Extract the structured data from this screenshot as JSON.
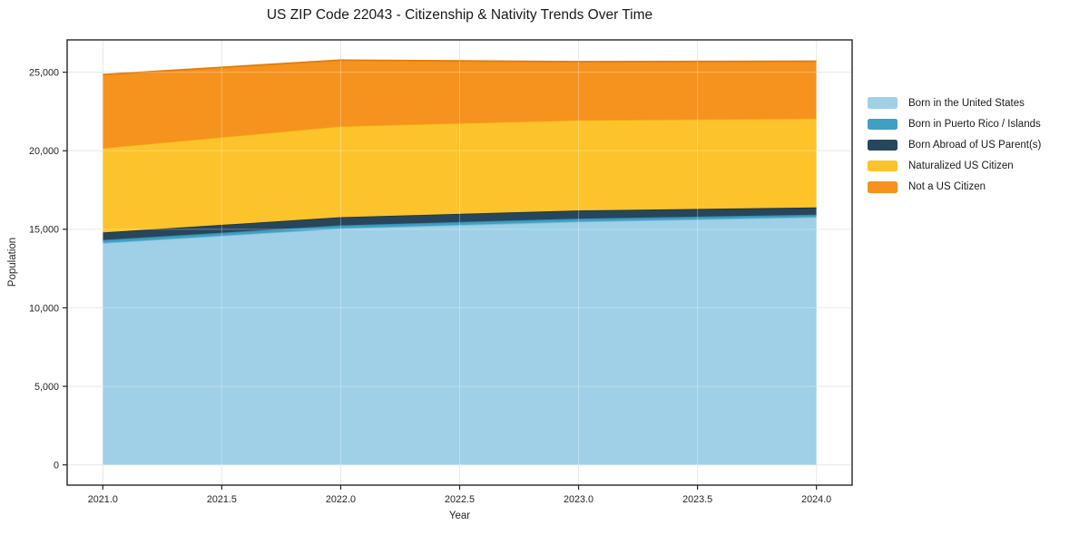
{
  "chart_data": {
    "type": "area",
    "stacked": true,
    "title": "US ZIP Code 22043 - Citizenship & Nativity Trends Over Time",
    "xlabel": "Year",
    "ylabel": "Population",
    "x": [
      2021,
      2022,
      2023,
      2024
    ],
    "series": [
      {
        "name": "Born in the United States",
        "color": "#9FD0E7",
        "edge_color": "#7FBBDA",
        "values": [
          14130,
          15060,
          15490,
          15780
        ]
      },
      {
        "name": "Born in Puerto Rico / Islands",
        "color": "#3FA0C0",
        "edge_color": "#2F8FAF",
        "values": [
          190,
          190,
          190,
          150
        ]
      },
      {
        "name": "Born Abroad of US Parent(s)",
        "color": "#28465B",
        "edge_color": "#1C3547",
        "values": [
          480,
          520,
          520,
          460
        ]
      },
      {
        "name": "Naturalized US Citizen",
        "color": "#FDC32B",
        "edge_color": "#EFA90F",
        "values": [
          5380,
          5800,
          5760,
          5670
        ]
      },
      {
        "name": "Not a US Citizen",
        "color": "#F6921E",
        "edge_color": "#E07D0D",
        "values": [
          4670,
          4200,
          3710,
          3640
        ]
      }
    ],
    "stack_totals": [
      24850,
      25770,
      25670,
      25700
    ],
    "xlim": [
      2020.85,
      2024.15
    ],
    "ylim": [
      -1289,
      27059
    ],
    "xticks": {
      "values": [
        2021.0,
        2021.5,
        2022.0,
        2022.5,
        2023.0,
        2023.5,
        2024.0
      ],
      "labels": [
        "2021.0",
        "2021.5",
        "2022.0",
        "2022.5",
        "2023.0",
        "2023.5",
        "2024.0"
      ]
    },
    "yticks": {
      "values": [
        0,
        5000,
        10000,
        15000,
        20000,
        25000
      ],
      "labels": [
        "0",
        "5,000",
        "10,000",
        "15,000",
        "20,000",
        "25,000"
      ]
    },
    "grid": true,
    "legend_position": "right",
    "frame_color": "#262626",
    "grid_color": "#e0e0e0",
    "tick_label_color": "#262626"
  }
}
